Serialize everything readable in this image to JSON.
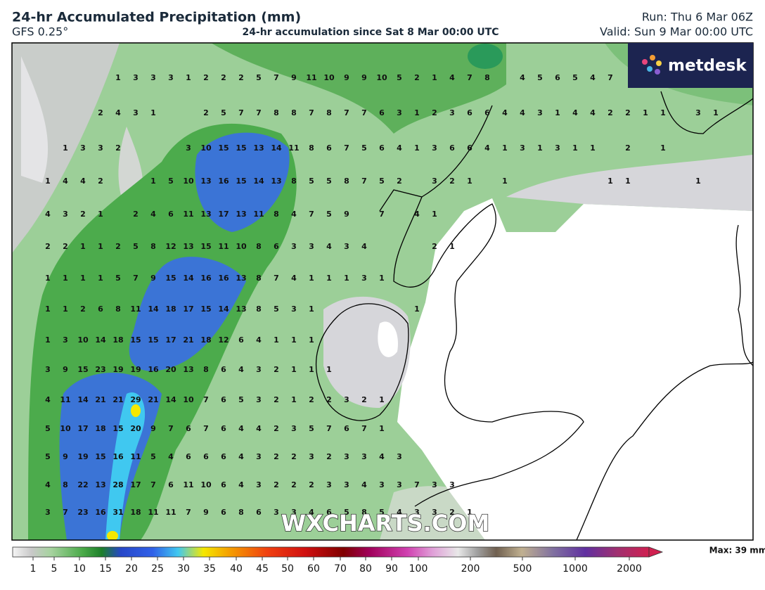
{
  "header": {
    "title": "24-hr Accumulated Precipitation (mm)",
    "model": "GFS 0.25°",
    "subtitle": "24-hr accumulation since Sat 8 Mar 00:00 UTC",
    "run": "Run: Thu 6 Mar 06Z",
    "valid": "Valid: Sun 9 Mar 00:00 UTC"
  },
  "logo": "metdesk",
  "watermark": "WXCHARTS.COM",
  "grid": [
    [
      null,
      null,
      null,
      null,
      1,
      3,
      3,
      3,
      1,
      2,
      2,
      2,
      5,
      7,
      9,
      11,
      10,
      9,
      9,
      10,
      5,
      2,
      1,
      4,
      7,
      8,
      null,
      4,
      5,
      6,
      5,
      4,
      7
    ],
    [
      null,
      null,
      null,
      2,
      4,
      3,
      1,
      null,
      null,
      2,
      5,
      7,
      7,
      8,
      8,
      7,
      8,
      7,
      7,
      6,
      3,
      1,
      2,
      3,
      6,
      6,
      4,
      4,
      3,
      1,
      4,
      4,
      2,
      2,
      1,
      1,
      null,
      3,
      1
    ],
    [
      null,
      1,
      3,
      3,
      2,
      null,
      null,
      null,
      3,
      10,
      15,
      15,
      13,
      14,
      11,
      8,
      6,
      7,
      5,
      6,
      4,
      1,
      3,
      6,
      6,
      4,
      1,
      3,
      1,
      3,
      1,
      1,
      null,
      2,
      null,
      1
    ],
    [
      1,
      4,
      4,
      2,
      null,
      null,
      1,
      5,
      10,
      13,
      16,
      15,
      14,
      13,
      8,
      5,
      5,
      8,
      7,
      5,
      2,
      null,
      3,
      2,
      1,
      null,
      1,
      null,
      null,
      null,
      null,
      null,
      1,
      1,
      null,
      null,
      null,
      1
    ],
    [
      4,
      3,
      2,
      1,
      null,
      2,
      4,
      6,
      11,
      13,
      17,
      13,
      11,
      8,
      4,
      7,
      5,
      9,
      null,
      7,
      null,
      4,
      1
    ],
    [
      2,
      2,
      1,
      1,
      2,
      5,
      8,
      12,
      13,
      15,
      11,
      10,
      8,
      6,
      3,
      3,
      4,
      3,
      4,
      null,
      null,
      null,
      2,
      1
    ],
    [
      1,
      1,
      1,
      1,
      5,
      7,
      9,
      15,
      14,
      16,
      16,
      13,
      8,
      7,
      4,
      1,
      1,
      1,
      3,
      1
    ],
    [
      1,
      1,
      2,
      6,
      8,
      11,
      14,
      18,
      17,
      15,
      14,
      13,
      8,
      5,
      3,
      1,
      null,
      null,
      null,
      null,
      null,
      1
    ],
    [
      1,
      3,
      10,
      14,
      18,
      15,
      15,
      17,
      21,
      18,
      12,
      6,
      4,
      1,
      1,
      1
    ],
    [
      3,
      9,
      15,
      23,
      19,
      19,
      16,
      20,
      13,
      8,
      6,
      4,
      3,
      2,
      1,
      1,
      1
    ],
    [
      4,
      11,
      14,
      21,
      21,
      29,
      21,
      14,
      10,
      7,
      6,
      5,
      3,
      2,
      1,
      2,
      2,
      3,
      2,
      1
    ],
    [
      5,
      10,
      17,
      18,
      15,
      20,
      9,
      7,
      6,
      7,
      6,
      4,
      4,
      2,
      3,
      5,
      7,
      6,
      7,
      1
    ],
    [
      5,
      9,
      19,
      15,
      16,
      11,
      5,
      4,
      6,
      6,
      6,
      4,
      3,
      2,
      2,
      3,
      2,
      3,
      3,
      4,
      3
    ],
    [
      4,
      8,
      22,
      13,
      28,
      17,
      7,
      6,
      11,
      10,
      6,
      4,
      3,
      2,
      2,
      2,
      3,
      3,
      4,
      3,
      3,
      7,
      3,
      3
    ],
    [
      3,
      7,
      23,
      16,
      31,
      18,
      11,
      11,
      7,
      9,
      6,
      8,
      6,
      3,
      3,
      4,
      6,
      5,
      8,
      5,
      4,
      3,
      3,
      2,
      1
    ]
  ],
  "colorbar": {
    "ticks": [
      1,
      5,
      10,
      15,
      20,
      25,
      30,
      35,
      40,
      45,
      50,
      60,
      70,
      80,
      90,
      100,
      200,
      500,
      1000,
      2000
    ],
    "max_label": "Max: 39 mm"
  }
}
